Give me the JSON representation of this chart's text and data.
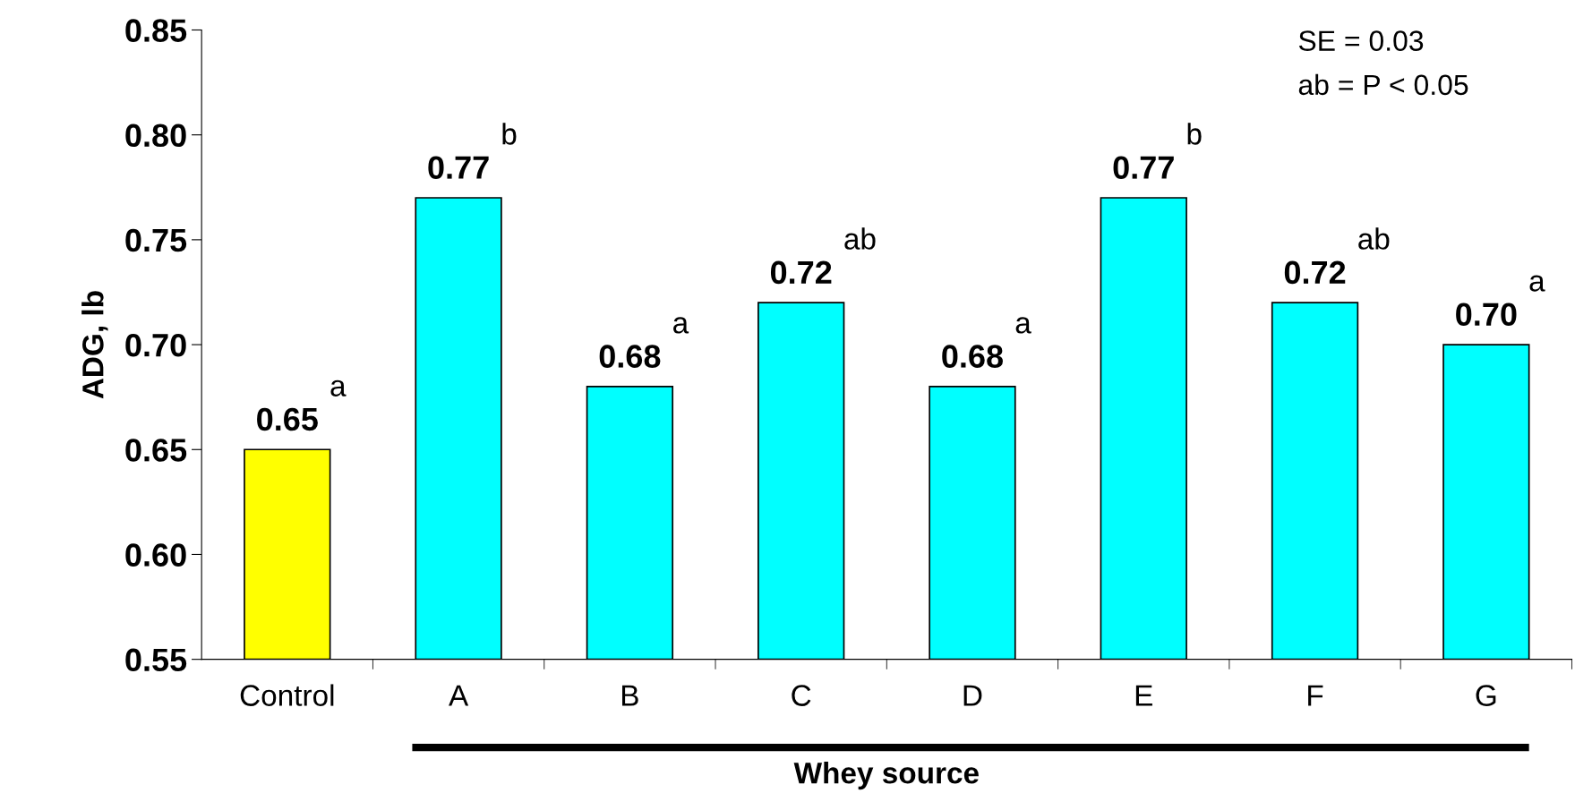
{
  "chart_data": {
    "type": "bar",
    "xlabel": "Whey source",
    "ylabel": "ADG, lb",
    "categories": [
      "Control",
      "A",
      "B",
      "C",
      "D",
      "E",
      "F",
      "G"
    ],
    "values": [
      0.65,
      0.77,
      0.68,
      0.72,
      0.68,
      0.77,
      0.72,
      0.7
    ],
    "colors": [
      "#ffff00",
      "#00ffff",
      "#00ffff",
      "#00ffff",
      "#00ffff",
      "#00ffff",
      "#00ffff",
      "#00ffff"
    ],
    "value_labels": [
      "0.65",
      "0.77",
      "0.68",
      "0.72",
      "0.68",
      "0.77",
      "0.72",
      "0.70"
    ],
    "ylim": [
      0.55,
      0.85
    ],
    "yticks": [
      {
        "value": 0.55,
        "label": "0.55"
      },
      {
        "value": 0.6,
        "label": "0.60"
      },
      {
        "value": 0.65,
        "label": "0.65"
      },
      {
        "value": 0.7,
        "label": "0.70"
      },
      {
        "value": 0.75,
        "label": "0.75"
      },
      {
        "value": 0.8,
        "label": "0.80"
      },
      {
        "value": 0.85,
        "label": "0.85"
      }
    ],
    "grid": false,
    "legend": false,
    "annotations": [
      "SE = 0.03",
      "ab = P < 0.05",
      {
        "text": "a",
        "x": "Control",
        "y": 0.65
      },
      {
        "text": "b",
        "x": "A",
        "y": 0.77
      },
      {
        "text": "a",
        "x": "B",
        "y": 0.68
      },
      {
        "text": "ab",
        "x": "C",
        "y": 0.72
      },
      {
        "text": "a",
        "x": "D",
        "y": 0.68
      },
      {
        "text": "b",
        "x": "E",
        "y": 0.77
      },
      {
        "text": "ab",
        "x": "F",
        "y": 0.72
      },
      {
        "text": "a",
        "x": "G",
        "y": 0.7
      }
    ]
  }
}
